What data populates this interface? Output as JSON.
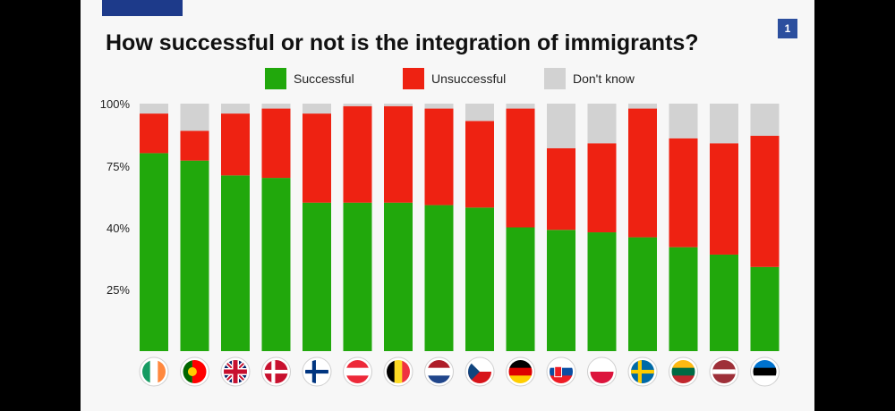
{
  "page_number": "1",
  "colors": {
    "successful": "#21a80c",
    "unsuccessful": "#ee2212",
    "dont_know": "#d2d2d2",
    "banner": "#1d3a8a"
  },
  "chart_data": {
    "type": "bar",
    "stacked": true,
    "title": "How successful or not is the integration of immigrants?",
    "legend_position": "top",
    "ytick_labels": [
      "100%",
      "75%",
      "40%",
      "25%"
    ],
    "categories": [
      "Ireland",
      "Portugal",
      "United Kingdom",
      "Denmark",
      "Finland",
      "Austria",
      "Belgium",
      "Netherlands",
      "Czechia",
      "Germany",
      "Slovakia",
      "Poland",
      "Sweden",
      "Lithuania",
      "Latvia",
      "Estonia"
    ],
    "category_icons": [
      "flag-ireland",
      "flag-portugal",
      "flag-uk",
      "flag-denmark",
      "flag-finland",
      "flag-austria",
      "flag-belgium",
      "flag-netherlands",
      "flag-czechia",
      "flag-germany",
      "flag-slovakia",
      "flag-poland",
      "flag-sweden",
      "flag-lithuania",
      "flag-latvia",
      "flag-estonia"
    ],
    "series": [
      {
        "name": "Successful",
        "values": [
          80,
          77,
          71,
          70,
          60,
          60,
          60,
          59,
          58,
          50,
          49,
          48,
          46,
          42,
          39,
          34
        ]
      },
      {
        "name": "Unsuccessful",
        "values": [
          16,
          12,
          25,
          28,
          36,
          39,
          39,
          39,
          35,
          48,
          33,
          36,
          52,
          44,
          45,
          53
        ]
      },
      {
        "name": "Don't know",
        "values": [
          4,
          11,
          4,
          2,
          4,
          1,
          1,
          2,
          7,
          2,
          18,
          16,
          2,
          14,
          16,
          13
        ]
      }
    ]
  }
}
